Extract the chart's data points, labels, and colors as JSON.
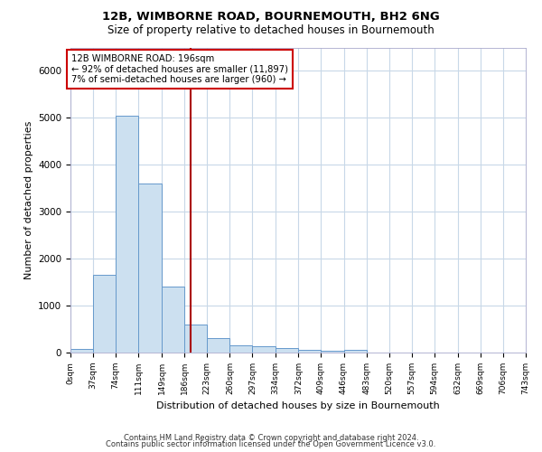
{
  "title": "12B, WIMBORNE ROAD, BOURNEMOUTH, BH2 6NG",
  "subtitle": "Size of property relative to detached houses in Bournemouth",
  "xlabel": "Distribution of detached houses by size in Bournemouth",
  "ylabel": "Number of detached properties",
  "bin_edges": [
    0,
    37,
    74,
    111,
    149,
    186,
    223,
    260,
    297,
    334,
    372,
    409,
    446,
    483,
    520,
    557,
    594,
    632,
    669,
    706,
    743
  ],
  "bin_counts": [
    75,
    1650,
    5050,
    3600,
    1400,
    600,
    300,
    160,
    140,
    100,
    60,
    40,
    50,
    0,
    0,
    0,
    0,
    0,
    0,
    0
  ],
  "bar_facecolor": "#cce0f0",
  "bar_edgecolor": "#6699cc",
  "property_size": 196,
  "vline_color": "#aa0000",
  "annotation_text": "12B WIMBORNE ROAD: 196sqm\n← 92% of detached houses are smaller (11,897)\n7% of semi-detached houses are larger (960) →",
  "annotation_box_edgecolor": "#cc0000",
  "ylim": [
    0,
    6500
  ],
  "footer1": "Contains HM Land Registry data © Crown copyright and database right 2024.",
  "footer2": "Contains public sector information licensed under the Open Government Licence v3.0.",
  "background_color": "#ffffff",
  "grid_color": "#c8d8e8"
}
